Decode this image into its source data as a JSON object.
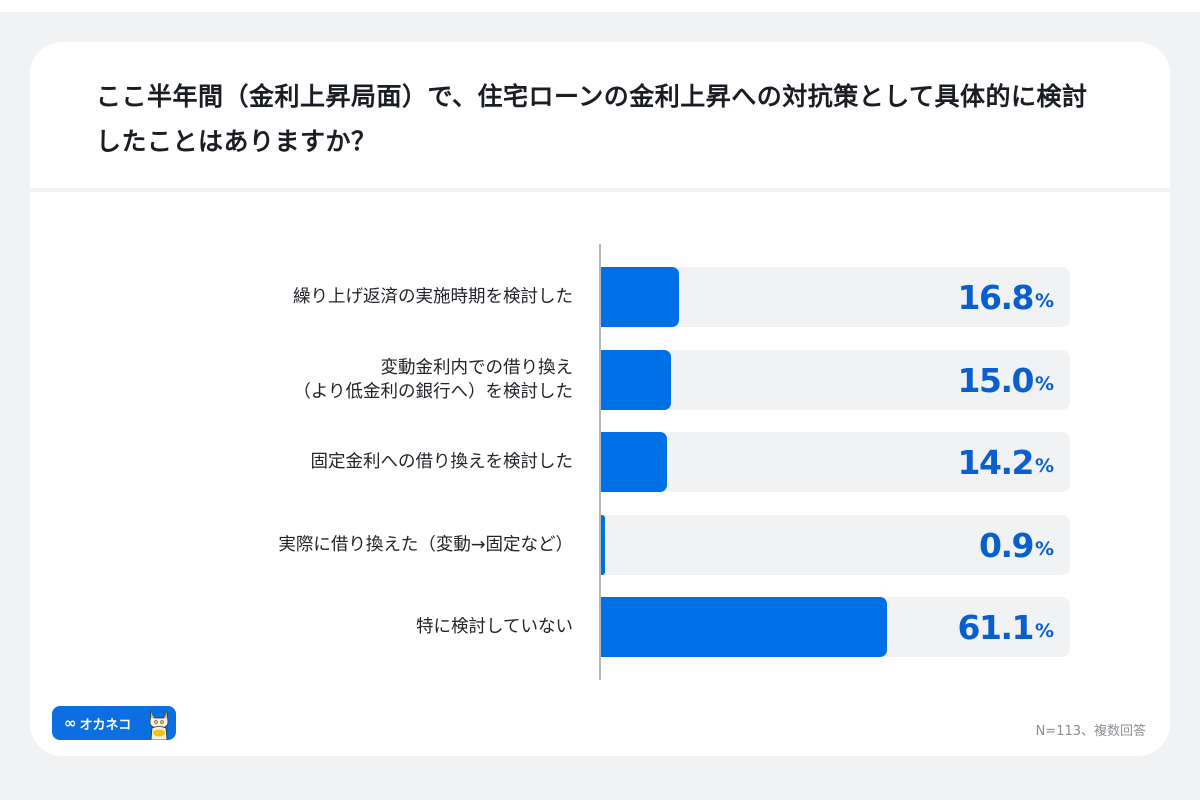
{
  "card": {
    "title": "ここ半年間（金利上昇局面）で、住宅ローンの金利上昇への対抗策として具体的に検討したことはありますか？"
  },
  "rows": [
    {
      "label_lines": [
        "繰り上げ返済の実施時期を検討した"
      ],
      "value": "16.8",
      "unit": "%"
    },
    {
      "label_lines": [
        "変動金利内での借り換え",
        "（より低金利の銀行へ）を検討した"
      ],
      "value": "15.0",
      "unit": "%"
    },
    {
      "label_lines": [
        "固定金利への借り換えを検討した"
      ],
      "value": "14.2",
      "unit": "%"
    },
    {
      "label_lines": [
        "実際に借り換えた（変動→固定など）"
      ],
      "value": "0.9",
      "unit": "%"
    },
    {
      "label_lines": [
        "特に検討していない"
      ],
      "value": "61.1",
      "unit": "%"
    }
  ],
  "footer": {
    "logo_text": "オカネコ",
    "logo_icon": "infinity-icon",
    "mascot_icon": "cat-mascot-icon",
    "note": "N=113、複数回答"
  },
  "colors": {
    "bar": "#0070e6",
    "track": "#f1f2f4",
    "value_text": "#0a5fcf",
    "background": "#f1f2f4"
  },
  "chart_data": {
    "type": "bar",
    "orientation": "horizontal",
    "title": "ここ半年間（金利上昇局面）で、住宅ローンの金利上昇への対抗策として具体的に検討したことはありますか？",
    "categories": [
      "繰り上げ返済の実施時期を検討した",
      "変動金利内での借り換え（より低金利の銀行へ）を検討した",
      "固定金利への借り換えを検討した",
      "実際に借り換えた（変動→固定など）",
      "特に検討していない"
    ],
    "values": [
      16.8,
      15.0,
      14.2,
      0.9,
      61.1
    ],
    "unit": "%",
    "xlabel": "",
    "ylabel": "",
    "xlim": [
      0,
      100
    ],
    "grid": false,
    "legend": null,
    "annotations": [
      "N=113、複数回答"
    ]
  }
}
